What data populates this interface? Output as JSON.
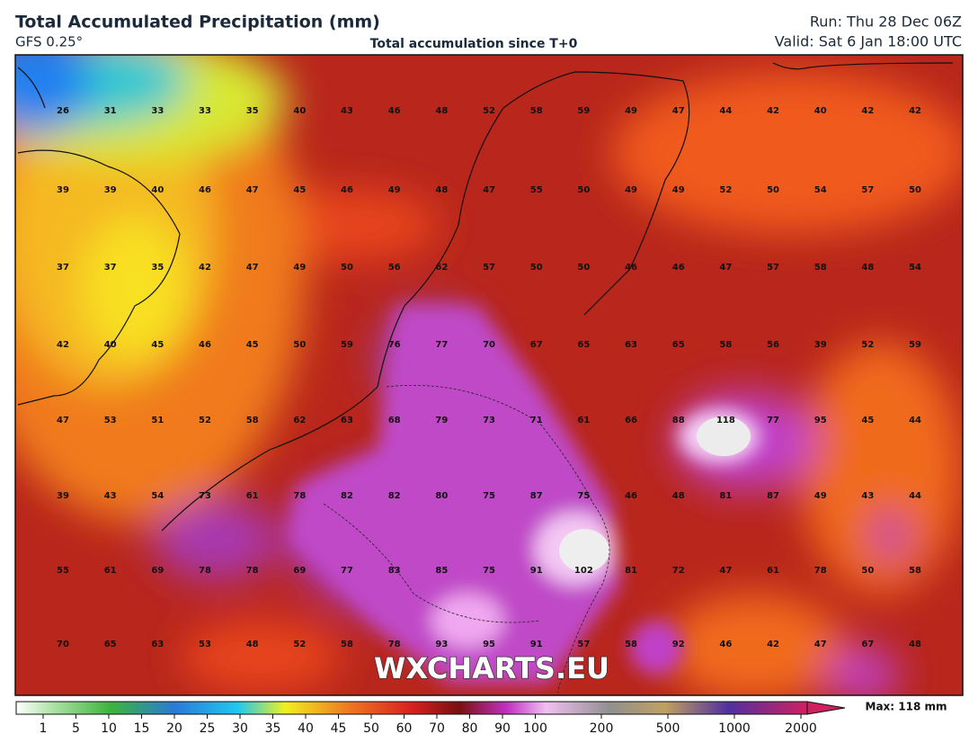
{
  "header": {
    "title": "Total Accumulated Precipitation (mm)",
    "model": "GFS 0.25°",
    "subtitle": "Total accumulation since T+0",
    "run": "Run: Thu 28 Dec 06Z",
    "valid": "Valid: Sat 6 Jan 18:00 UTC"
  },
  "map": {
    "grid": [
      [
        26,
        31,
        33,
        33,
        35,
        40,
        43,
        46,
        48,
        52,
        58,
        59,
        49,
        47,
        44,
        42,
        40,
        42,
        42
      ],
      [
        39,
        39,
        40,
        46,
        47,
        45,
        46,
        49,
        48,
        47,
        55,
        50,
        49,
        49,
        52,
        50,
        54,
        57,
        50
      ],
      [
        37,
        37,
        35,
        42,
        47,
        49,
        50,
        56,
        62,
        57,
        50,
        50,
        46,
        46,
        47,
        57,
        58,
        48,
        54
      ],
      [
        42,
        40,
        45,
        46,
        45,
        50,
        59,
        76,
        77,
        70,
        67,
        65,
        63,
        65,
        58,
        56,
        39,
        52,
        59
      ],
      [
        47,
        53,
        51,
        52,
        58,
        62,
        63,
        68,
        79,
        73,
        71,
        61,
        66,
        88,
        118,
        77,
        95,
        45,
        44
      ],
      [
        39,
        43,
        54,
        73,
        61,
        78,
        82,
        82,
        80,
        75,
        87,
        75,
        46,
        48,
        81,
        87,
        49,
        43,
        44
      ],
      [
        55,
        61,
        69,
        78,
        78,
        69,
        77,
        83,
        85,
        75,
        91,
        102,
        81,
        72,
        47,
        61,
        78,
        50,
        58
      ],
      [
        70,
        65,
        63,
        53,
        48,
        52,
        58,
        78,
        93,
        95,
        91,
        57,
        58,
        92,
        46,
        42,
        47,
        67,
        48
      ]
    ],
    "watermark": "WXCHARTS.EU"
  },
  "colorbar": {
    "labels": [
      1,
      5,
      10,
      15,
      20,
      25,
      30,
      35,
      40,
      45,
      50,
      60,
      70,
      80,
      90,
      100,
      200,
      500,
      1000,
      2000
    ],
    "max": "Max: 118 mm"
  }
}
